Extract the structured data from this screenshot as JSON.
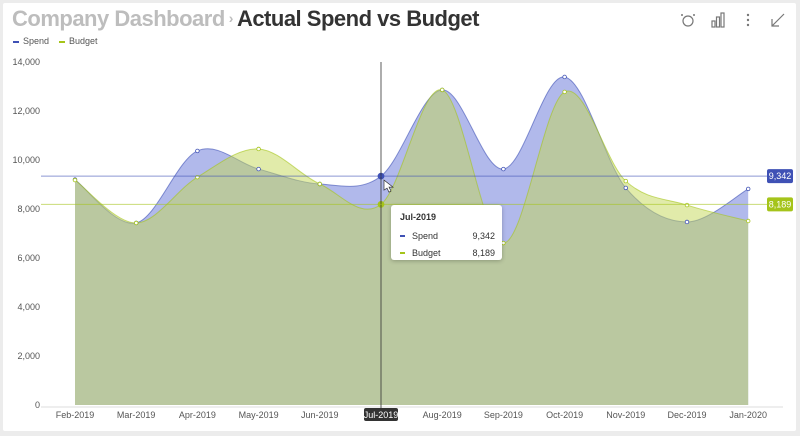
{
  "header": {
    "breadcrumb": "Company Dashboard",
    "separator": "›",
    "title": "Actual Spend vs Budget"
  },
  "toolbar": {
    "icons": [
      "alarm-icon",
      "bar-chart-icon",
      "more-vertical-icon",
      "collapse-arrow-icon"
    ]
  },
  "colors": {
    "spend": "#3f51b5",
    "budget": "#a5c41a",
    "spend_fill": "rgba(100,115,215,0.5)",
    "budget_fill": "rgba(195,215,85,0.5)"
  },
  "chart_data": {
    "type": "area",
    "categories": [
      "Feb-2019",
      "Mar-2019",
      "Apr-2019",
      "May-2019",
      "Jun-2019",
      "Jul-2019",
      "Aug-2019",
      "Sep-2019",
      "Oct-2019",
      "Nov-2019",
      "Dec-2019",
      "Jan-2020"
    ],
    "series": [
      {
        "name": "Spend",
        "values": [
          9200,
          7430,
          10370,
          9630,
          9020,
          9342,
          12860,
          9630,
          13390,
          8860,
          7470,
          8820
        ]
      },
      {
        "name": "Budget",
        "values": [
          9180,
          7430,
          9300,
          10450,
          9020,
          8189,
          12860,
          6610,
          12780,
          9140,
          8160,
          7510
        ]
      }
    ],
    "ylim": [
      0,
      14000
    ],
    "yticks": [
      "0",
      "2,000",
      "4,000",
      "6,000",
      "8,000",
      "10,000",
      "12,000",
      "14,000"
    ],
    "smooth": true,
    "legend": "top-left",
    "crosshair": {
      "category": "Jul-2019",
      "spend_label": "9,342",
      "budget_label": "8,189"
    },
    "tooltip": {
      "title": "Jul-2019",
      "rows": [
        {
          "name": "Spend",
          "value": "9,342"
        },
        {
          "name": "Budget",
          "value": "8,189"
        }
      ]
    }
  }
}
